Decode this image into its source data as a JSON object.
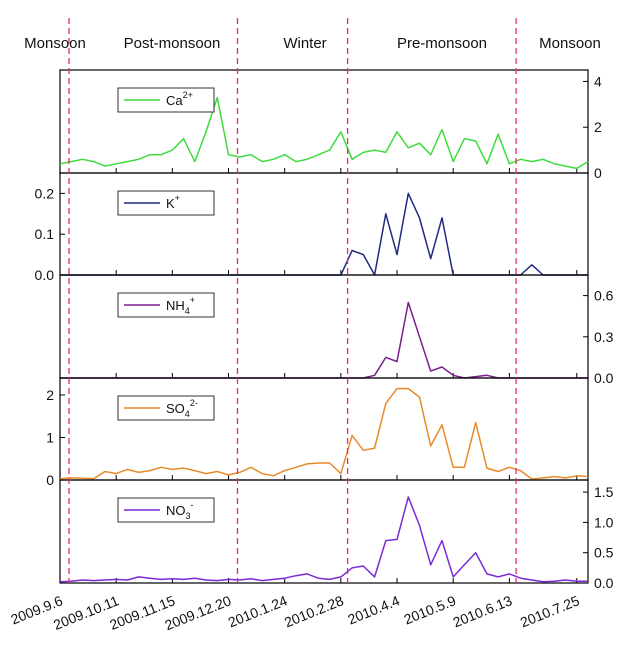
{
  "seasons": [
    "Monsoon",
    "Post-monsoon",
    "Winter",
    "Pre-monsoon",
    "Monsoon"
  ],
  "colors": {
    "ca": "#3ddc3d",
    "k": "#1f2a80",
    "nh4": "#7a1f8a",
    "so4": "#e88a2a",
    "no3": "#7a2ad6",
    "divider": "#e0306a"
  },
  "chart_data": {
    "type": "line",
    "x_labels": [
      "2009.9.6",
      "2009.10.11",
      "2009.11.15",
      "2009.12.20",
      "2010.1.24",
      "2010.2.28",
      "2010.4.4",
      "2010.5.9",
      "2010.6.13",
      "2010.7.25"
    ],
    "x_label_index": [
      0,
      5,
      10,
      15,
      20,
      25,
      30,
      35,
      40,
      46
    ],
    "season_dividers_index": [
      0.8,
      15.8,
      25.6,
      40.6
    ],
    "n_points": 48,
    "panels": [
      {
        "id": "ca",
        "legend_main": "Ca",
        "legend_sup": "2+",
        "legend_sub": "",
        "axis_side": "right",
        "ylim": [
          0,
          4.5
        ],
        "ticks": [
          0,
          2,
          4
        ],
        "tick_labels": [
          "0",
          "2",
          "4"
        ],
        "values": [
          0.4,
          0.5,
          0.6,
          0.5,
          0.3,
          0.4,
          0.5,
          0.6,
          0.8,
          0.8,
          1.0,
          1.5,
          0.5,
          1.8,
          3.3,
          0.8,
          0.7,
          0.8,
          0.5,
          0.6,
          0.8,
          0.5,
          0.6,
          0.8,
          1.0,
          1.8,
          0.6,
          0.9,
          1.0,
          0.9,
          1.8,
          1.1,
          1.3,
          0.8,
          1.9,
          0.5,
          1.5,
          1.4,
          0.4,
          1.7,
          0.4,
          0.6,
          0.5,
          0.6,
          0.4,
          0.3,
          0.2,
          0.5
        ]
      },
      {
        "id": "k",
        "legend_main": "K",
        "legend_sup": "+",
        "legend_sub": "",
        "axis_side": "left",
        "ylim": [
          0,
          0.25
        ],
        "ticks": [
          0,
          0.1,
          0.2
        ],
        "tick_labels": [
          "0.0",
          "0.1",
          "0.2"
        ],
        "values": [
          0,
          0,
          0,
          0,
          0,
          0,
          0,
          0,
          0,
          0,
          0,
          0,
          0,
          0,
          0,
          0,
          0,
          0,
          0,
          0,
          0,
          0,
          0,
          0,
          0,
          0,
          0.06,
          0.05,
          0.0,
          0.15,
          0.05,
          0.2,
          0.14,
          0.04,
          0.14,
          0.0,
          0,
          0,
          0,
          0,
          0,
          0,
          0.025,
          0,
          0,
          0,
          0,
          0
        ]
      },
      {
        "id": "nh4",
        "legend_main": "NH",
        "legend_sup": "+",
        "legend_sub": "4",
        "axis_side": "right",
        "ylim": [
          0,
          0.75
        ],
        "ticks": [
          0,
          0.3,
          0.6
        ],
        "tick_labels": [
          "0.0",
          "0.3",
          "0.6"
        ],
        "values": [
          0,
          0,
          0,
          0,
          0,
          0,
          0,
          0,
          0,
          0,
          0,
          0,
          0,
          0,
          0,
          0,
          0,
          0,
          0,
          0,
          0,
          0,
          0,
          0,
          0,
          0,
          0,
          0,
          0.02,
          0.15,
          0.12,
          0.55,
          0.3,
          0.05,
          0.08,
          0.02,
          0,
          0.01,
          0.02,
          0,
          0,
          0,
          0,
          0,
          0,
          0,
          0,
          0
        ]
      },
      {
        "id": "so4",
        "legend_main": "SO",
        "legend_sup": "2-",
        "legend_sub": "4",
        "axis_side": "left",
        "ylim": [
          0,
          2.4
        ],
        "ticks": [
          0,
          1,
          2
        ],
        "tick_labels": [
          "0",
          "1",
          "2"
        ],
        "values": [
          0.03,
          0.05,
          0.04,
          0.03,
          0.2,
          0.15,
          0.25,
          0.18,
          0.22,
          0.3,
          0.25,
          0.28,
          0.22,
          0.15,
          0.2,
          0.12,
          0.18,
          0.3,
          0.15,
          0.1,
          0.22,
          0.3,
          0.38,
          0.4,
          0.4,
          0.15,
          1.05,
          0.7,
          0.75,
          1.8,
          2.15,
          2.15,
          1.95,
          0.8,
          1.3,
          0.3,
          0.3,
          1.35,
          0.28,
          0.2,
          0.3,
          0.22,
          0.02,
          0.05,
          0.08,
          0.05,
          0.1,
          0.08
        ]
      },
      {
        "id": "no3",
        "legend_main": "NO",
        "legend_sup": "-",
        "legend_sub": "3",
        "axis_side": "right",
        "ylim": [
          0,
          1.7
        ],
        "ticks": [
          0,
          0.5,
          1,
          1.5
        ],
        "tick_labels": [
          "0.0",
          "0.5",
          "1.0",
          "1.5"
        ],
        "values": [
          0.02,
          0.03,
          0.05,
          0.04,
          0.05,
          0.06,
          0.05,
          0.1,
          0.08,
          0.06,
          0.07,
          0.06,
          0.08,
          0.05,
          0.04,
          0.06,
          0.05,
          0.07,
          0.04,
          0.06,
          0.08,
          0.12,
          0.15,
          0.08,
          0.06,
          0.1,
          0.25,
          0.28,
          0.1,
          0.7,
          0.72,
          1.42,
          0.95,
          0.3,
          0.7,
          0.1,
          0.3,
          0.5,
          0.15,
          0.1,
          0.15,
          0.08,
          0.05,
          0.02,
          0.03,
          0.05,
          0.03,
          0.03
        ]
      }
    ]
  }
}
